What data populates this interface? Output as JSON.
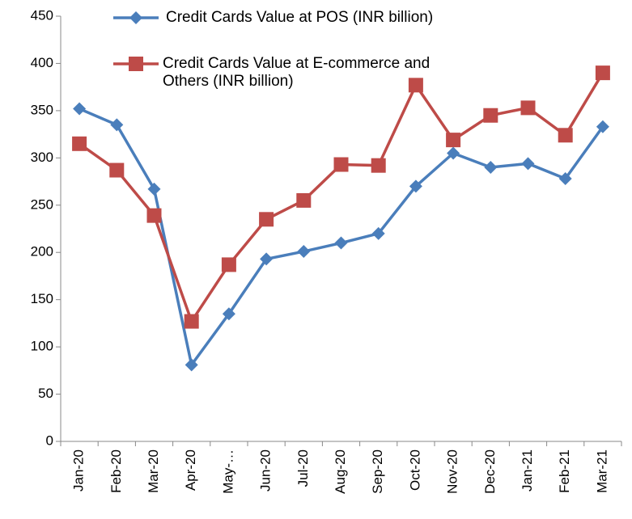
{
  "chart_data": {
    "type": "line",
    "categories": [
      "Jan-20",
      "Feb-20",
      "Mar-20",
      "Apr-20",
      "May-…",
      "Jun-20",
      "Jul-20",
      "Aug-20",
      "Sep-20",
      "Oct-20",
      "Nov-20",
      "Dec-20",
      "Jan-21",
      "Feb-21",
      "Mar-21"
    ],
    "series": [
      {
        "name": "Credit Cards Value at POS (INR billion)",
        "color": "#4a7ebb",
        "marker": "diamond",
        "values": [
          352,
          335,
          267,
          81,
          135,
          193,
          201,
          210,
          220,
          270,
          305,
          290,
          294,
          278,
          333
        ]
      },
      {
        "name": "Credit Cards Value at E-commerce and Others (INR billion)",
        "color": "#be4b48",
        "marker": "square",
        "values": [
          315,
          287,
          239,
          127,
          187,
          235,
          255,
          293,
          292,
          377,
          319,
          345,
          353,
          324,
          390
        ]
      }
    ],
    "ylim": [
      0,
      450
    ],
    "yticks": [
      0,
      50,
      100,
      150,
      200,
      250,
      300,
      350,
      400,
      450
    ]
  }
}
